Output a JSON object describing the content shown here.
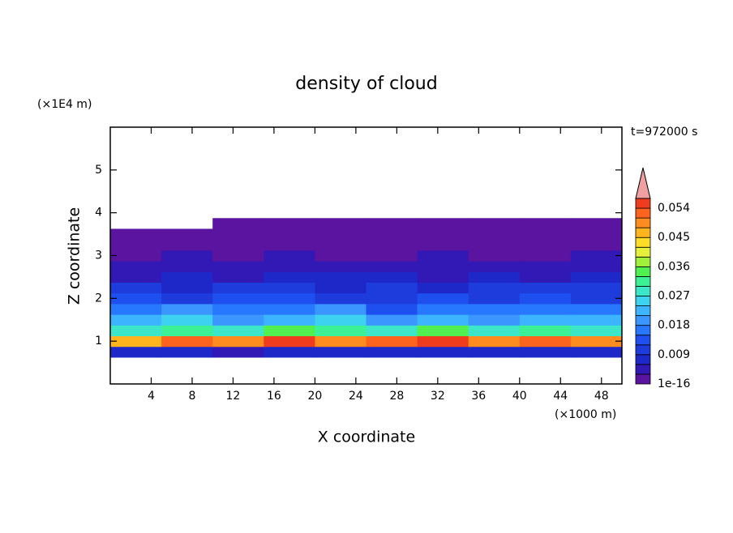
{
  "chart_data": {
    "type": "contour",
    "title": "density of cloud",
    "y_unit": "(×1E4 m)",
    "x_unit": "(×1000 m)",
    "time_label": "t=972000 s",
    "x_label": "X coordinate",
    "y_label": "Z coordinate",
    "xlim": [
      0,
      50
    ],
    "ylim": [
      0,
      6
    ],
    "xticks": [
      4,
      8,
      12,
      16,
      20,
      24,
      28,
      32,
      36,
      40,
      44,
      48
    ],
    "yticks": [
      1,
      2,
      3,
      4,
      5
    ],
    "x": [
      2.5,
      7.5,
      12.5,
      17.5,
      22.5,
      27.5,
      32.5,
      37.5,
      42.5,
      47.5
    ],
    "y": [
      0.75,
      1.0,
      1.25,
      1.5,
      1.75,
      2.0,
      2.25,
      2.5,
      2.75,
      3.0,
      3.25,
      3.5,
      3.75
    ],
    "values": [
      [
        0.007,
        0.008,
        0.006,
        0.009,
        0.008,
        0.007,
        0.009,
        0.008,
        0.007,
        0.008
      ],
      [
        0.048,
        0.052,
        0.05,
        0.055,
        0.05,
        0.053,
        0.056,
        0.05,
        0.052,
        0.049
      ],
      [
        0.03,
        0.033,
        0.028,
        0.035,
        0.031,
        0.03,
        0.034,
        0.029,
        0.032,
        0.03
      ],
      [
        0.022,
        0.025,
        0.02,
        0.024,
        0.026,
        0.021,
        0.023,
        0.02,
        0.024,
        0.022
      ],
      [
        0.017,
        0.019,
        0.016,
        0.018,
        0.02,
        0.015,
        0.017,
        0.016,
        0.018,
        0.017
      ],
      [
        0.013,
        0.012,
        0.014,
        0.013,
        0.012,
        0.011,
        0.013,
        0.012,
        0.014,
        0.012
      ],
      [
        0.01,
        0.009,
        0.011,
        0.01,
        0.009,
        0.01,
        0.009,
        0.01,
        0.011,
        0.01
      ],
      [
        0.006,
        0.007,
        0.006,
        0.007,
        0.008,
        0.007,
        0.006,
        0.007,
        0.006,
        0.007
      ],
      [
        0.004,
        0.005,
        0.005,
        0.004,
        0.005,
        0.005,
        0.004,
        0.005,
        0.004,
        0.005
      ],
      [
        0.003,
        0.004,
        0.003,
        0.004,
        0.003,
        0.003,
        0.004,
        0.003,
        0.003,
        0.004
      ],
      [
        0.002,
        0.001,
        0.002,
        0.002,
        0.001,
        0.002,
        0.002,
        0.001,
        0.002,
        0.002
      ],
      [
        0.001,
        0.001,
        0.001,
        0.001,
        0.001,
        0.001,
        0.001,
        0.001,
        0.001,
        0.001
      ],
      [
        null,
        null,
        0.001,
        0.001,
        0.001,
        0.001,
        0.001,
        0.001,
        0.001,
        0.001
      ]
    ],
    "clim": [
      1e-16,
      0.057
    ],
    "cticks": [
      1e-16,
      0.009,
      0.018,
      0.027,
      0.036,
      0.045,
      0.054
    ],
    "colors": [
      "#5a14a0",
      "#3218b4",
      "#1e28c8",
      "#1e3cdc",
      "#1e50f0",
      "#2878ff",
      "#3c96ff",
      "#3cb4ff",
      "#3cd2f0",
      "#3ce6c8",
      "#3cf096",
      "#50f050",
      "#a0f03c",
      "#e6f03c",
      "#ffdc28",
      "#ffb41e",
      "#ff8c1e",
      "#ff641e",
      "#f03c1e"
    ],
    "extend_color": "#f0a0a0"
  }
}
